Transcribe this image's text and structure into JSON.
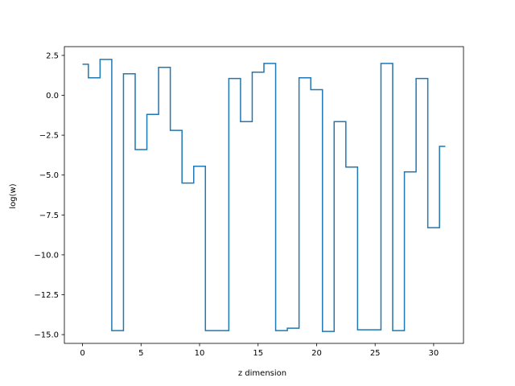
{
  "chart_data": {
    "type": "line",
    "drawstyle": "steps-mid",
    "title": "",
    "xlabel": "z dimension",
    "ylabel": "log(w)",
    "xlim": [
      -1.55,
      32.55
    ],
    "ylim": [
      -15.55,
      3.05
    ],
    "grid": false,
    "xticks": [
      0,
      5,
      10,
      15,
      20,
      25,
      30
    ],
    "xtick_labels": [
      "0",
      "5",
      "10",
      "15",
      "20",
      "25",
      "30"
    ],
    "yticks": [
      2.5,
      0.0,
      -2.5,
      -5.0,
      -7.5,
      -10.0,
      -12.5,
      -15.0
    ],
    "ytick_labels": [
      "2.5",
      "0.0",
      "−2.5",
      "−5.0",
      "−7.5",
      "−10.0",
      "−12.5",
      "−15.0"
    ],
    "series": [
      {
        "color": "#1f77b4",
        "x": [
          0,
          1,
          2,
          3,
          4,
          5,
          6,
          7,
          8,
          9,
          10,
          11,
          12,
          13,
          14,
          15,
          16,
          17,
          18,
          19,
          20,
          21,
          22,
          23,
          24,
          25,
          26,
          27,
          28,
          29,
          30,
          31
        ],
        "values": [
          1.95,
          1.1,
          2.25,
          -14.75,
          1.35,
          -3.4,
          -1.2,
          1.75,
          -2.2,
          -5.5,
          -4.45,
          -14.75,
          -14.75,
          1.05,
          -1.65,
          1.45,
          2.0,
          -14.75,
          -14.6,
          1.1,
          0.35,
          -14.8,
          -1.65,
          -4.5,
          -14.7,
          -14.7,
          2.0,
          -14.75,
          -4.8,
          1.05,
          -8.3,
          -3.2
        ]
      }
    ]
  }
}
